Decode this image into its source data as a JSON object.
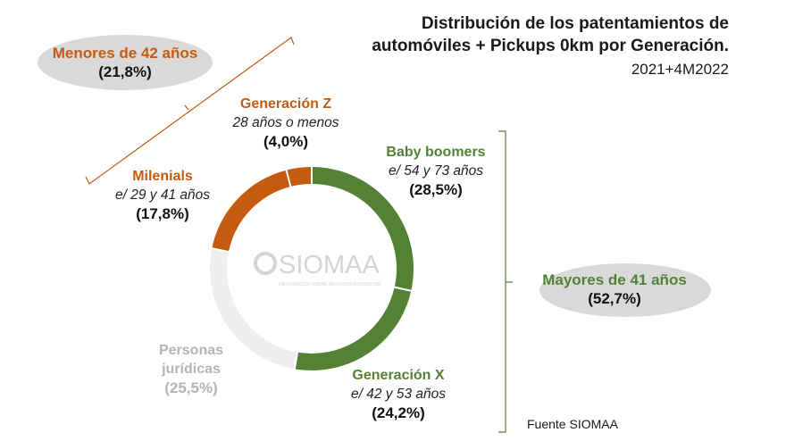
{
  "chart_data": {
    "type": "pie",
    "variant": "donut",
    "title": "Distribución de los patentamientos de automóviles + Pickups 0km por Generación.",
    "title_line1": "Distribución de los patentamientos de",
    "title_line2": "automóviles + Pickups 0km por Generación.",
    "subtitle": "2021+4M2022",
    "slices": [
      {
        "name": "Baby boomers",
        "range": "e/ 54 y 73 años",
        "value": 28.5,
        "pct_label": "(28,5%)",
        "color": "#548235"
      },
      {
        "name": "Generación X",
        "range": "e/ 42 y 53 años",
        "value": 24.2,
        "pct_label": "(24,2%)",
        "color": "#548235"
      },
      {
        "name": "Personas jurídicas",
        "name_line1": "Personas",
        "name_line2": "jurídicas",
        "range": "",
        "value": 25.5,
        "pct_label": "(25,5%)",
        "color": "#efefef"
      },
      {
        "name": "Milenials",
        "range": "e/ 29 y 41 años",
        "value": 17.8,
        "pct_label": "(17,8%)",
        "color": "#c55a11"
      },
      {
        "name": "Generación Z",
        "range": "28 años o menos",
        "value": 4.0,
        "pct_label": "(4,0%)",
        "color": "#c55a11"
      }
    ],
    "groups": [
      {
        "name": "Menores de 42 años",
        "pct_label": "(21,8%)",
        "value": 21.8
      },
      {
        "name": "Mayores de 41 años",
        "pct_label": "(52,7%)",
        "value": 52.7
      }
    ],
    "watermark": "SIOMAA",
    "watermark_sub": "INFORMACIÓN SOBRE MERCADO AUTOMOTOR"
  },
  "source": "Fuente SIOMAA",
  "colors": {
    "green": "#548235",
    "orange": "#c55a11",
    "grey": "#efefef",
    "bubble": "#d9d9d9"
  }
}
